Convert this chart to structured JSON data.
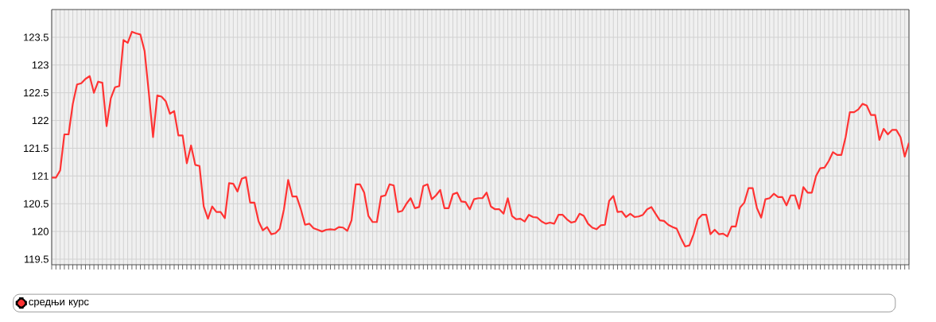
{
  "chart_data": {
    "type": "line",
    "ylim": [
      119.4,
      124
    ],
    "yticks": [
      119.5,
      120,
      120.5,
      121,
      121.5,
      122,
      122.5,
      123,
      123.5
    ],
    "grid": true,
    "legend": "bottom",
    "marker": "none",
    "line_style": "solid",
    "categories": [
      null,
      null,
      null,
      null,
      null,
      null,
      null,
      null,
      null,
      null,
      null,
      null,
      null,
      null,
      null,
      null,
      null,
      null,
      null,
      null,
      null,
      null,
      null,
      null,
      null,
      null,
      null,
      null,
      null,
      null,
      null,
      null,
      null,
      null,
      null,
      null,
      null,
      null,
      null,
      null,
      null,
      null,
      null,
      null,
      null,
      null,
      null,
      null,
      null,
      null,
      null,
      null,
      null,
      null,
      null,
      null,
      null,
      null,
      null,
      null,
      null,
      null,
      null,
      null,
      null,
      null,
      null,
      null,
      null,
      null,
      null,
      null,
      null,
      null,
      null,
      null,
      null,
      null,
      null,
      null,
      null,
      null,
      null,
      null,
      null,
      null,
      null,
      null,
      null,
      null,
      null,
      null,
      null,
      null,
      null,
      null,
      null,
      null,
      null,
      null,
      null,
      null,
      null,
      null,
      null,
      null,
      null,
      null,
      null,
      null,
      null,
      null,
      null,
      null,
      null,
      null,
      null,
      null,
      null,
      null,
      null,
      null,
      null,
      null,
      null,
      null,
      null,
      null,
      null,
      null,
      null,
      null,
      null,
      null,
      null,
      null,
      null,
      null,
      null,
      null,
      null,
      null,
      null,
      null,
      null,
      null,
      null,
      null,
      null,
      null,
      null,
      null,
      null,
      null,
      null,
      null,
      null,
      null,
      null,
      null,
      null,
      null,
      null,
      null,
      null,
      null,
      null,
      null,
      null,
      null,
      null,
      null,
      null,
      null,
      null,
      null,
      null,
      null,
      null,
      null,
      null,
      null,
      null,
      null,
      null,
      null,
      null,
      null,
      null,
      null,
      null,
      null,
      null,
      null,
      null,
      null,
      null,
      null,
      null,
      null,
      null,
      null,
      null,
      null
    ],
    "series": [
      {
        "name": "средњи курс",
        "color": "#ff3333",
        "values": [
          120.97,
          120.97,
          121.1,
          121.75,
          121.75,
          122.3,
          122.65,
          122.67,
          122.75,
          122.8,
          122.5,
          122.7,
          122.68,
          121.9,
          122.4,
          122.6,
          122.62,
          123.45,
          123.4,
          123.6,
          123.57,
          123.55,
          123.25,
          122.5,
          121.7,
          122.45,
          122.43,
          122.35,
          122.12,
          122.17,
          121.73,
          121.73,
          121.23,
          121.55,
          121.2,
          121.18,
          120.45,
          120.23,
          120.45,
          120.35,
          120.35,
          120.24,
          120.87,
          120.86,
          120.72,
          120.95,
          120.98,
          120.52,
          120.52,
          120.18,
          120.02,
          120.08,
          119.95,
          119.97,
          120.05,
          120.4,
          120.93,
          120.63,
          120.63,
          120.4,
          120.12,
          120.14,
          120.06,
          120.03,
          120.0,
          120.03,
          120.04,
          120.03,
          120.08,
          120.07,
          120.01,
          120.2,
          120.85,
          120.85,
          120.7,
          120.28,
          120.17,
          120.17,
          120.63,
          120.65,
          120.85,
          120.83,
          120.35,
          120.37,
          120.5,
          120.6,
          120.42,
          120.44,
          120.82,
          120.85,
          120.58,
          120.65,
          120.75,
          120.42,
          120.42,
          120.67,
          120.7,
          120.54,
          120.53,
          120.4,
          120.58,
          120.6,
          120.6,
          120.7,
          120.45,
          120.4,
          120.4,
          120.32,
          120.6,
          120.28,
          120.22,
          120.23,
          120.18,
          120.3,
          120.26,
          120.25,
          120.18,
          120.14,
          120.16,
          120.14,
          120.3,
          120.3,
          120.22,
          120.16,
          120.18,
          120.32,
          120.28,
          120.14,
          120.07,
          120.04,
          120.11,
          120.12,
          120.55,
          120.64,
          120.35,
          120.36,
          120.26,
          120.32,
          120.26,
          120.27,
          120.3,
          120.4,
          120.44,
          120.32,
          120.2,
          120.19,
          120.12,
          120.08,
          120.05,
          119.88,
          119.73,
          119.75,
          119.95,
          120.22,
          120.3,
          120.3,
          119.95,
          120.03,
          119.95,
          119.96,
          119.91,
          120.09,
          120.09,
          120.43,
          120.52,
          120.78,
          120.78,
          120.42,
          120.25,
          120.58,
          120.6,
          120.68,
          120.62,
          120.62,
          120.47,
          120.65,
          120.65,
          120.41,
          120.8,
          120.7,
          120.7,
          121.0,
          121.14,
          121.15,
          121.27,
          121.43,
          121.38,
          121.38,
          121.7,
          122.15,
          122.15,
          122.2,
          122.3,
          122.27,
          122.1,
          122.1,
          121.65,
          121.85,
          121.75,
          121.83,
          121.83,
          121.7,
          121.35,
          121.6
        ]
      }
    ]
  }
}
